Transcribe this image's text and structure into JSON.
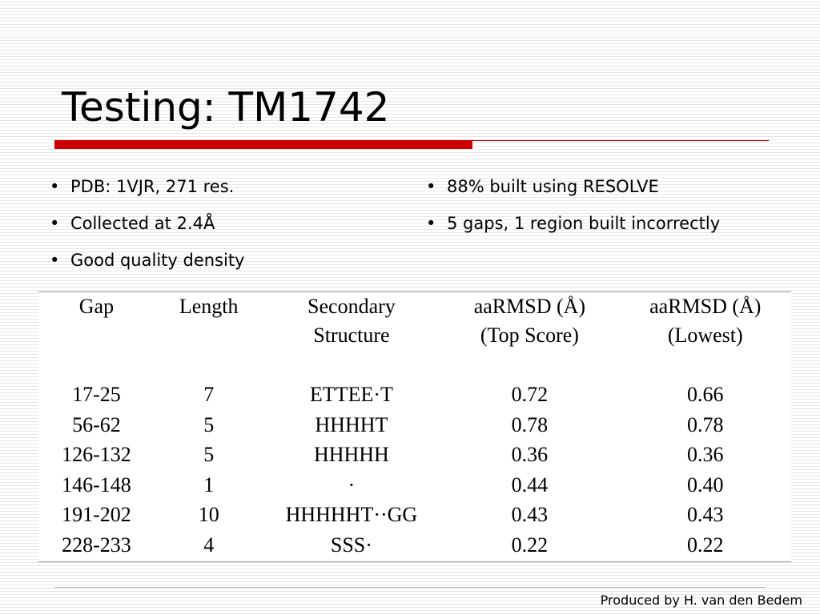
{
  "slide": {
    "title": "Testing: TM1742",
    "credit": "Produced by H. van den Bedem"
  },
  "bullets": {
    "left": [
      "PDB: 1VJR, 271 res.",
      "Collected at 2.4Å",
      "Good quality density"
    ],
    "right": [
      "88% built using RESOLVE",
      "5 gaps, 1 region built incorrectly"
    ]
  },
  "table": {
    "headers": [
      "Gap",
      "Length",
      "Secondary Structure",
      "aaRMSD (Å) (Top Score)",
      "aaRMSD (Å) (Lowest)"
    ],
    "header_lines": [
      [
        "Gap"
      ],
      [
        "Length"
      ],
      [
        "Secondary",
        "Structure"
      ],
      [
        "aaRMSD (Å)",
        "(Top Score)"
      ],
      [
        "aaRMSD (Å)",
        "(Lowest)"
      ]
    ],
    "rows": [
      [
        "17-25",
        "7",
        "ETTEE·T",
        "0.72",
        "0.66"
      ],
      [
        "56-62",
        "5",
        "HHHHT",
        "0.78",
        "0.78"
      ],
      [
        "126-132",
        "5",
        "HHHHH",
        "0.36",
        "0.36"
      ],
      [
        "146-148",
        "1",
        "·",
        "0.44",
        "0.40"
      ],
      [
        "191-202",
        "10",
        "HHHHHT··GG",
        "0.43",
        "0.43"
      ],
      [
        "228-233",
        "4",
        "SSS·",
        "0.22",
        "0.22"
      ]
    ]
  }
}
